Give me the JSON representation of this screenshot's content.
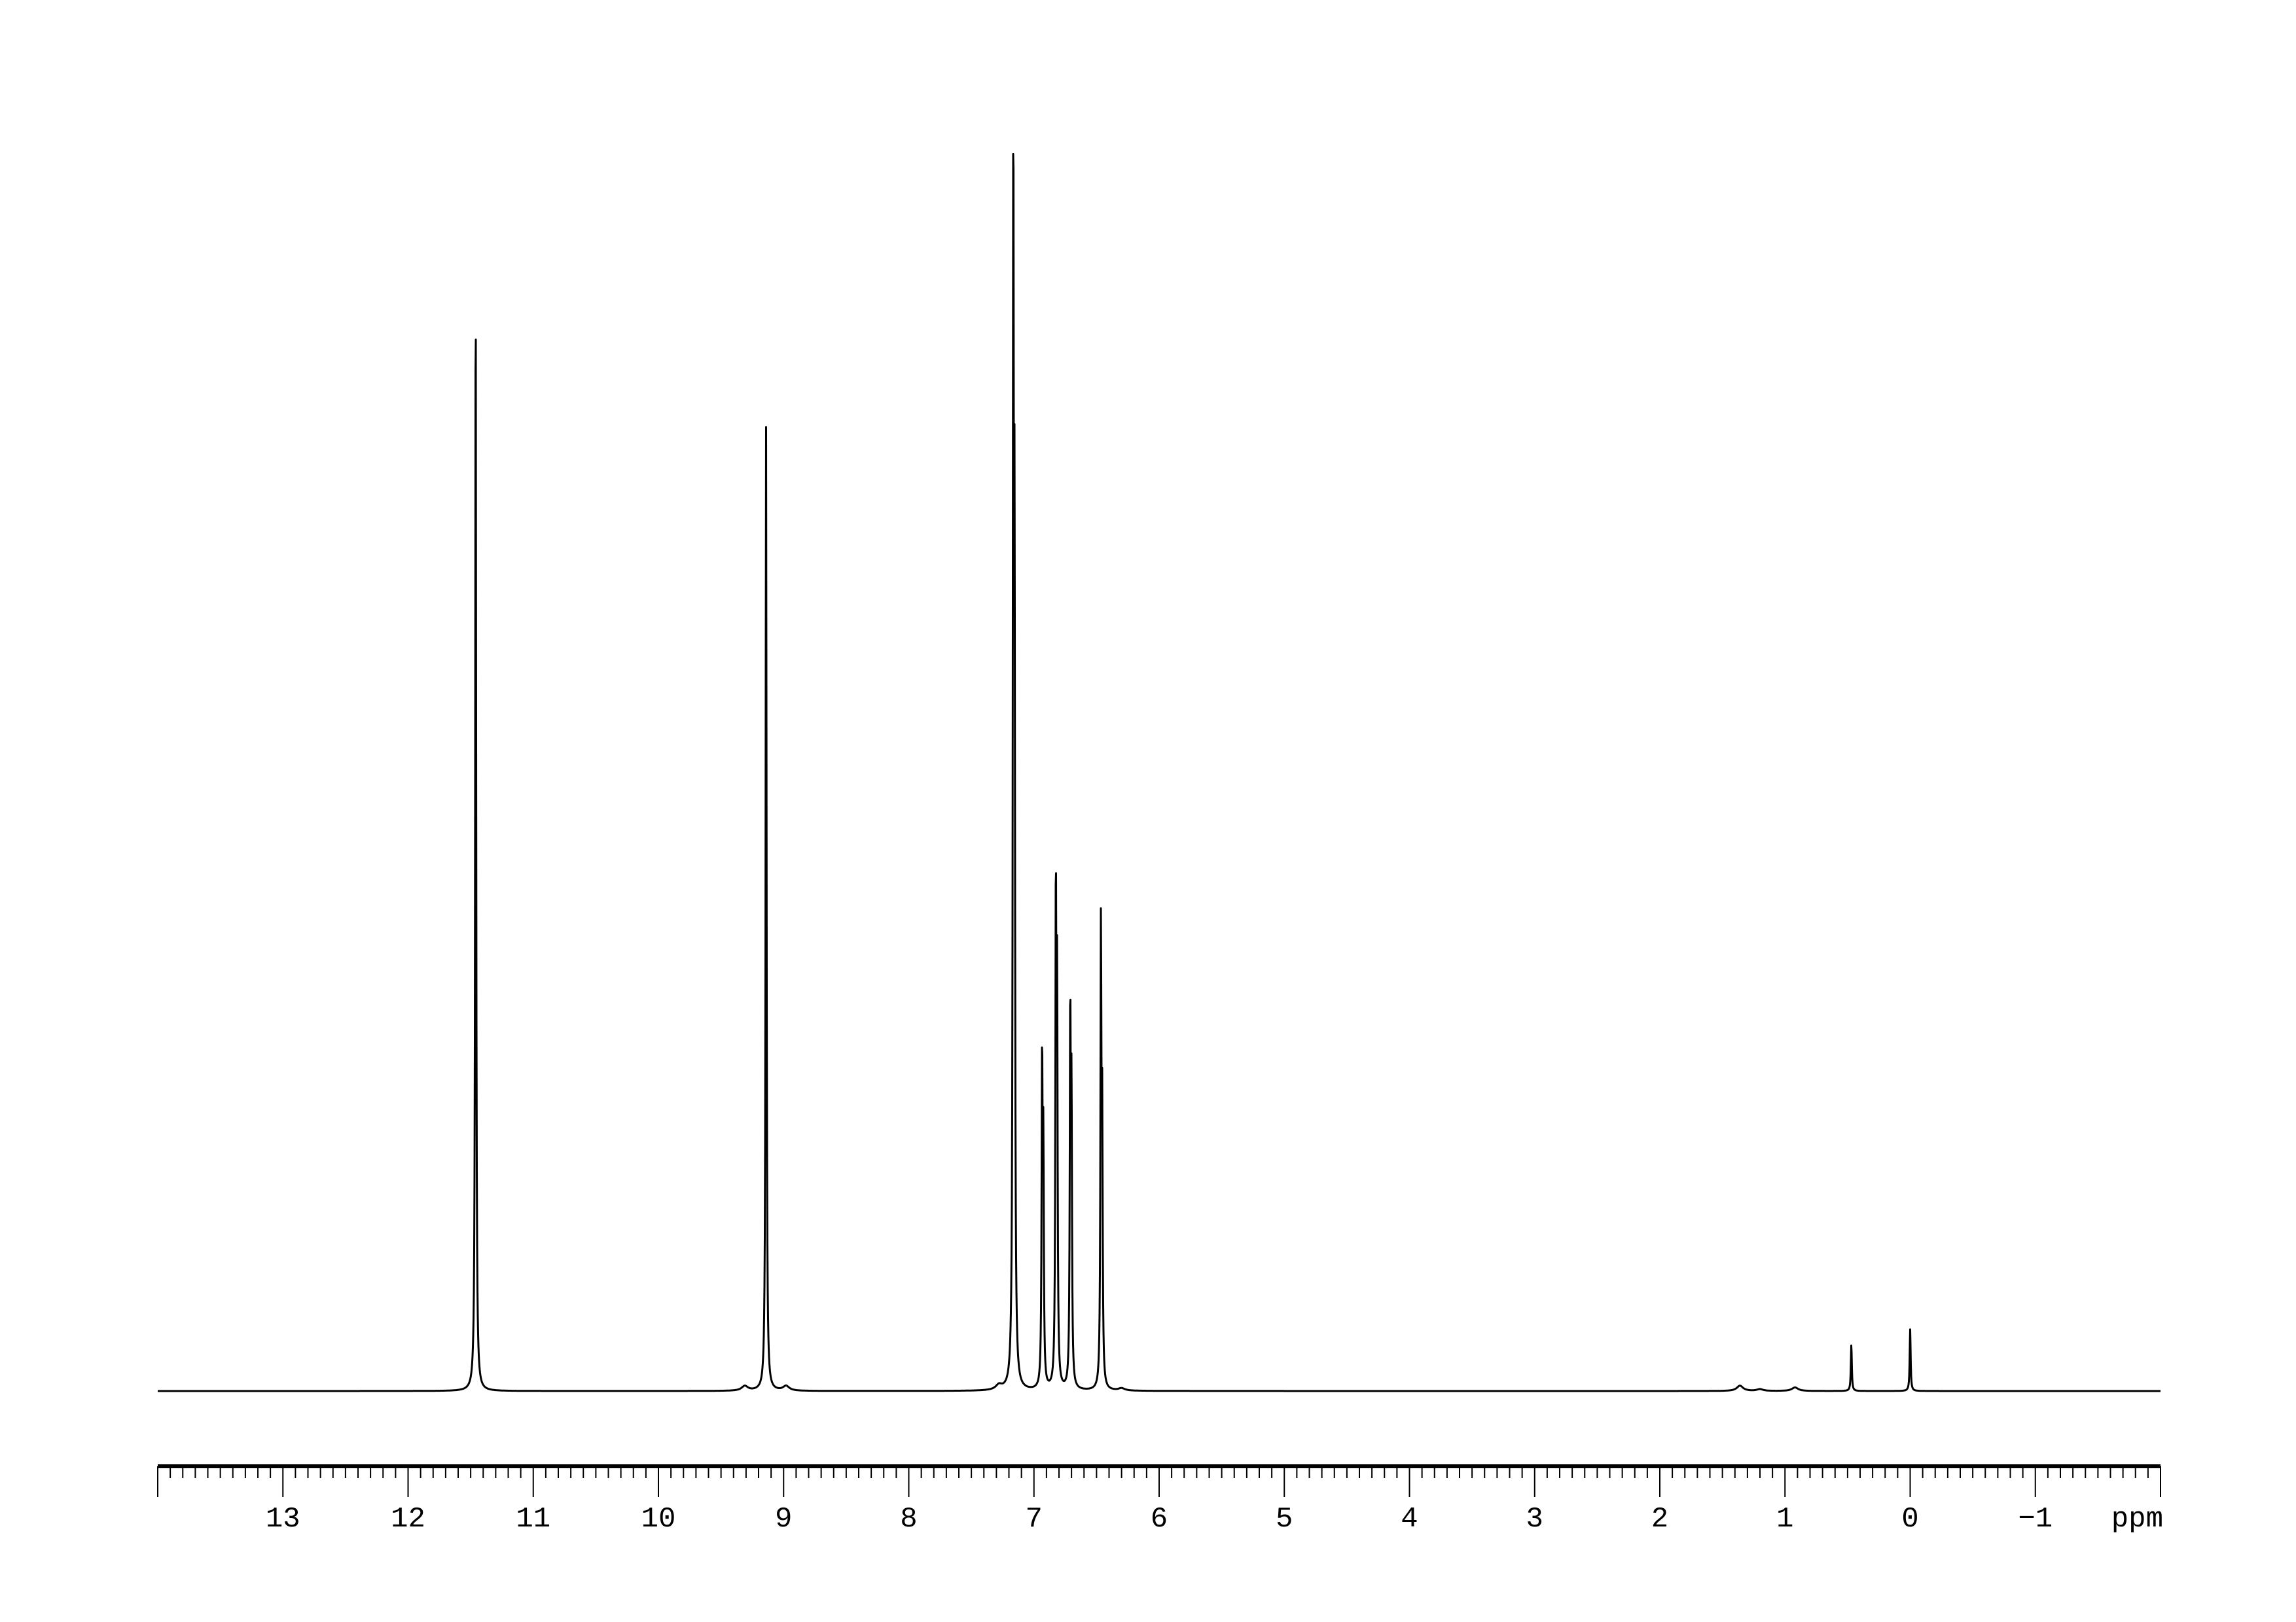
{
  "chart_data": {
    "type": "line",
    "title": "",
    "xlabel": "ppm",
    "ylabel": "",
    "xlim": [
      14,
      -2
    ],
    "x_reversed": true,
    "grid": false,
    "line_color": "#000000",
    "background": "#ffffff",
    "x_ticks_major": [
      13,
      12,
      11,
      10,
      9,
      8,
      7,
      6,
      5,
      4,
      3,
      2,
      1,
      0,
      -1
    ],
    "x_tick_labels": [
      "13",
      "12",
      "11",
      "10",
      "9",
      "8",
      "7",
      "6",
      "5",
      "4",
      "3",
      "2",
      "1",
      "0",
      "−1"
    ],
    "minor_tick_step": 0.1,
    "peaks": [
      {
        "ppm": 11.46,
        "intensity": 94.8
      },
      {
        "ppm": 9.31,
        "intensity": 0.4
      },
      {
        "ppm": 9.14,
        "intensity": 81.4
      },
      {
        "ppm": 8.98,
        "intensity": 0.4
      },
      {
        "ppm": 7.28,
        "intensity": 0.4
      },
      {
        "ppm": 7.165,
        "intensity": 100
      },
      {
        "ppm": 7.155,
        "intensity": 64
      },
      {
        "ppm": 6.935,
        "intensity": 27.2
      },
      {
        "ppm": 6.925,
        "intensity": 19
      },
      {
        "ppm": 6.825,
        "intensity": 40.6
      },
      {
        "ppm": 6.815,
        "intensity": 31.3
      },
      {
        "ppm": 6.71,
        "intensity": 30.9
      },
      {
        "ppm": 6.7,
        "intensity": 23
      },
      {
        "ppm": 6.465,
        "intensity": 37.6
      },
      {
        "ppm": 6.455,
        "intensity": 21
      },
      {
        "ppm": 6.3,
        "intensity": 0.2
      },
      {
        "ppm": 1.36,
        "intensity": 0.45
      },
      {
        "ppm": 1.2,
        "intensity": 0.15
      },
      {
        "ppm": 0.92,
        "intensity": 0.3
      },
      {
        "ppm": 0.47,
        "intensity": 3.9
      },
      {
        "ppm": 0.0,
        "intensity": 5.2
      }
    ]
  }
}
